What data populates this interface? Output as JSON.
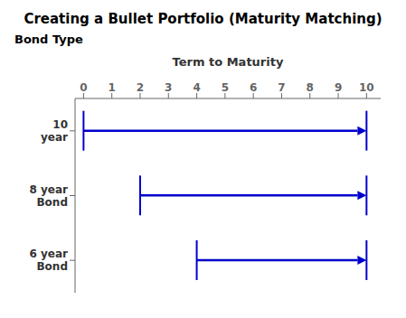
{
  "chart_data": {
    "type": "bar",
    "orientation": "horizontal",
    "title": "Creating a Bullet Portfolio (Maturity Matching)",
    "x_label": "Term to Maturity",
    "y_label": "Bond Type",
    "categories": [
      "10\nyear",
      "8 year\nBond",
      "6 year\nBond"
    ],
    "values": [
      [
        0,
        10
      ],
      [
        2,
        10
      ],
      [
        4,
        10
      ]
    ],
    "xlim": [
      -0.3,
      10.5
    ],
    "xticks": [
      0,
      1,
      2,
      3,
      4,
      5,
      6,
      7,
      8,
      9,
      10
    ],
    "color": "#0000CC",
    "grid": false
  }
}
